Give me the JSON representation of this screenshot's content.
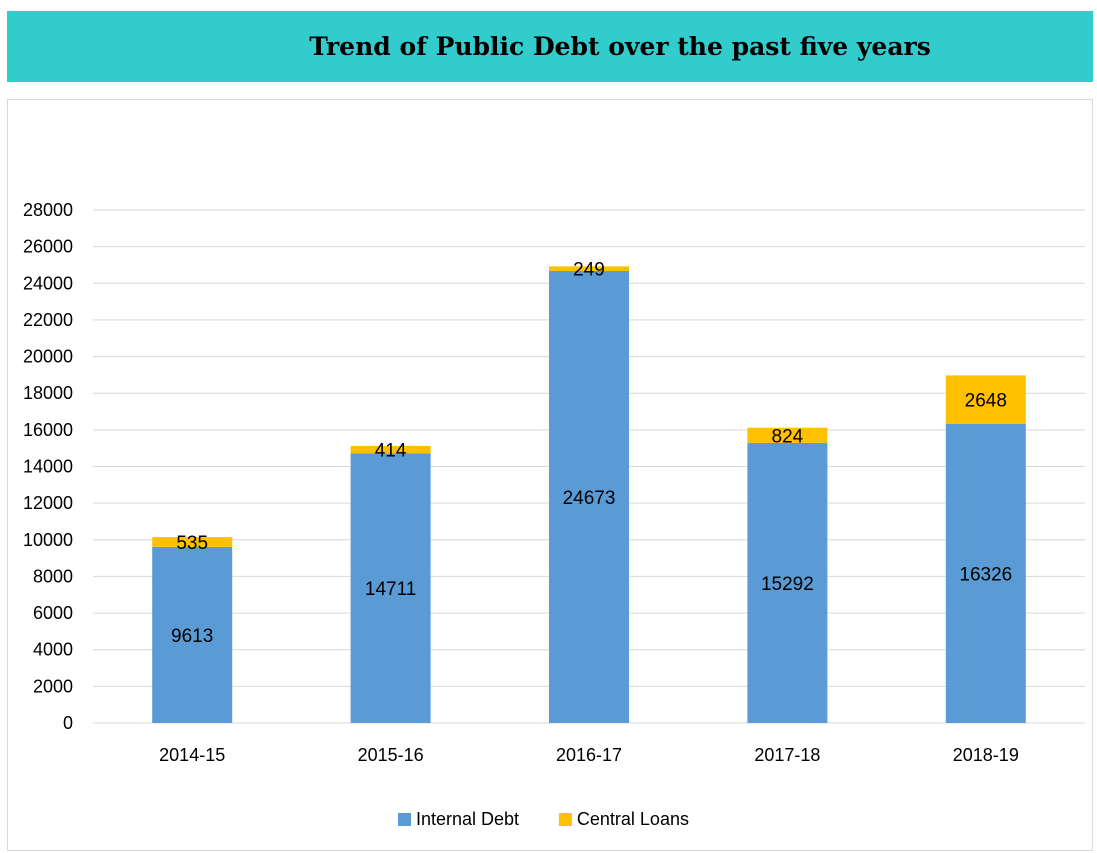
{
  "title": "Trend of Public Debt over the past five years",
  "colors": {
    "banner": "#33CCCC",
    "internal_debt": "#5B9BD5",
    "central_loans": "#FFC000",
    "grid": "#d9d9d9"
  },
  "chart_data": {
    "type": "bar",
    "stacked": true,
    "title": "Trend of Public Debt over the past five years",
    "xlabel": "",
    "ylabel": "",
    "categories": [
      "2014-15",
      "2015-16",
      "2016-17",
      "2017-18",
      "2018-19"
    ],
    "series": [
      {
        "name": "Internal Debt",
        "values": [
          9613,
          14711,
          24673,
          15292,
          16326
        ],
        "color": "#5B9BD5"
      },
      {
        "name": "Central Loans",
        "values": [
          535,
          414,
          249,
          824,
          2648
        ],
        "color": "#FFC000"
      }
    ],
    "ylim": [
      0,
      28000
    ],
    "yticks": [
      0,
      2000,
      4000,
      6000,
      8000,
      10000,
      12000,
      14000,
      16000,
      18000,
      20000,
      22000,
      24000,
      26000,
      28000
    ],
    "grid": true,
    "legend": "bottom",
    "data_labels": true
  }
}
